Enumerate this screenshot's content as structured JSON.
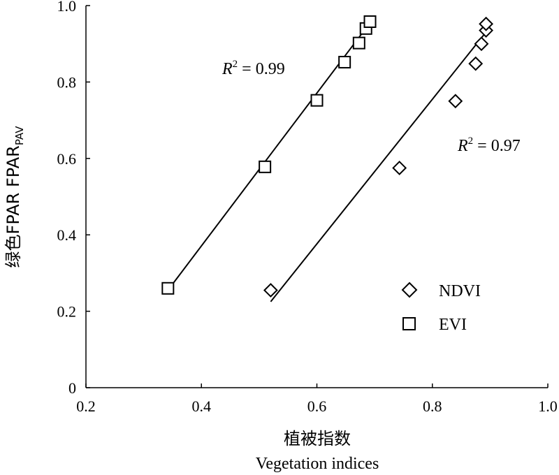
{
  "chart_data": {
    "type": "scatter",
    "xlabel_cn": "植被指数",
    "xlabel_en": "Vegetation indices",
    "ylabel_main": "绿色FPAR  FPAR",
    "ylabel_sub": "PAV",
    "xlim": [
      0.2,
      1.0
    ],
    "ylim": [
      0,
      1.0
    ],
    "x_ticks": [
      "0.2",
      "0.4",
      "0.6",
      "0.8",
      "1.0"
    ],
    "y_ticks": [
      "0",
      "0.2",
      "0.4",
      "0.6",
      "0.8",
      "1.0"
    ],
    "grid": false,
    "legend_position": "bottom-right",
    "series": [
      {
        "name": "NDVI",
        "marker": "diamond",
        "x": [
          0.52,
          0.743,
          0.84,
          0.875,
          0.885,
          0.893,
          0.893
        ],
        "y": [
          0.255,
          0.575,
          0.75,
          0.848,
          0.9,
          0.935,
          0.952
        ],
        "r2_label": "R",
        "r2_sup": "2",
        "r2_value": " = 0.97",
        "fit": [
          [
            0.52,
            0.225
          ],
          [
            0.89,
            0.925
          ]
        ]
      },
      {
        "name": "EVI",
        "marker": "square",
        "x": [
          0.342,
          0.51,
          0.6,
          0.648,
          0.673,
          0.685,
          0.692
        ],
        "y": [
          0.26,
          0.578,
          0.752,
          0.852,
          0.902,
          0.94,
          0.958
        ],
        "r2_label": "R",
        "r2_sup": "2",
        "r2_value": " = 0.99",
        "fit": [
          [
            0.342,
            0.255
          ],
          [
            0.692,
            0.955
          ]
        ]
      }
    ]
  }
}
